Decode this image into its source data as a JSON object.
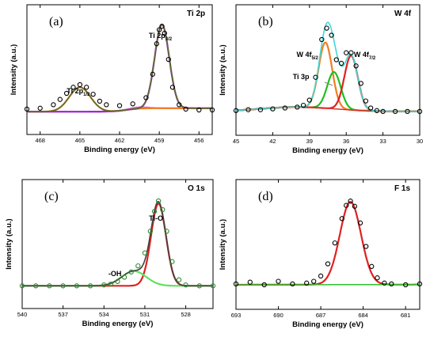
{
  "chart_data": [
    {
      "type": "line",
      "panel_label": "(a)",
      "title": "Ti 2p",
      "xlabel": "Binding energy (eV)",
      "ylabel": "Intensity (a.u.)",
      "xlim": [
        469,
        455
      ],
      "x_reversed": true,
      "xticks": [
        468,
        465,
        462,
        459,
        456
      ],
      "annotations": [
        {
          "text": "Ti 2p",
          "sub": "1/2",
          "x": 465
        },
        {
          "text": "Ti 2p",
          "sub": "3/2",
          "x": 458.8
        }
      ],
      "colors": {
        "data": "#000000",
        "peak_a": "#f07d20",
        "peak_b": "#9a2ad0",
        "background": "#e060e0",
        "envelope": "#5a6e22"
      },
      "series": [
        {
          "role": "data",
          "marker": "circle",
          "color": "#000000",
          "x": [
            469,
            468,
            467,
            466.5,
            466,
            465.5,
            465,
            464.5,
            464,
            463.5,
            463,
            462,
            461,
            460,
            459.5,
            459.2,
            459,
            458.8,
            458.6,
            458.3,
            458,
            457.5,
            457,
            456,
            455
          ],
          "y": [
            0.05,
            0.06,
            0.1,
            0.16,
            0.23,
            0.3,
            0.33,
            0.3,
            0.22,
            0.14,
            0.1,
            0.09,
            0.11,
            0.18,
            0.45,
            0.8,
            0.96,
            1.0,
            0.92,
            0.62,
            0.3,
            0.1,
            0.05,
            0.04,
            0.04
          ]
        }
      ]
    },
    {
      "type": "line",
      "panel_label": "(b)",
      "title": "W 4f",
      "xlabel": "Binding energy (eV)",
      "ylabel": "Intensity (a.u.)",
      "xlim": [
        45,
        30
      ],
      "x_reversed": true,
      "xticks": [
        45,
        42,
        39,
        36,
        33,
        30
      ],
      "annotations": [
        {
          "text": "W 4f",
          "sub": "5/2",
          "x": 37.6
        },
        {
          "text": "W 4f",
          "sub": "7/2",
          "x": 35.5
        },
        {
          "text": "Ti 3p",
          "sub": "",
          "x": 37.0
        }
      ],
      "colors": {
        "data": "#000000",
        "peak_a": "#f07d20",
        "peak_b": "#20c020",
        "peak_c": "#e02020",
        "envelope": "#40d8d8",
        "background": "#e03030"
      },
      "series": [
        {
          "role": "data",
          "marker": "circle",
          "color": "#000000",
          "x": [
            45,
            44,
            43,
            42,
            41,
            40,
            39.5,
            39,
            38.5,
            38,
            37.6,
            37.2,
            36.8,
            36.4,
            36,
            35.6,
            35.2,
            34.8,
            34.4,
            34,
            33.5,
            33,
            32,
            31,
            30
          ],
          "y": [
            0.04,
            0.05,
            0.05,
            0.06,
            0.07,
            0.08,
            0.1,
            0.16,
            0.42,
            0.85,
            0.98,
            0.9,
            0.62,
            0.58,
            0.7,
            0.7,
            0.55,
            0.35,
            0.15,
            0.07,
            0.04,
            0.03,
            0.03,
            0.03,
            0.03
          ]
        }
      ]
    },
    {
      "type": "line",
      "panel_label": "(c)",
      "title": "O 1s",
      "xlabel": "Binding energy (eV)",
      "ylabel": "Intensity (a.u.)",
      "xlim": [
        540,
        526
      ],
      "x_reversed": true,
      "xticks": [
        540,
        537,
        534,
        531,
        528
      ],
      "annotations": [
        {
          "text": "Ti-O",
          "sub": "",
          "x": 530.0
        },
        {
          "text": "-OH",
          "sub": "",
          "x": 532.4
        }
      ],
      "colors": {
        "data": "#2a8a2a",
        "peak_a": "#e02020",
        "peak_b": "#60e060",
        "envelope": "#404040"
      },
      "series": [
        {
          "role": "data",
          "marker": "circle",
          "color": "#2a8a2a",
          "x": [
            540,
            539,
            538,
            537,
            536,
            535,
            534,
            533.5,
            533,
            532.5,
            532,
            531.5,
            531,
            530.6,
            530.3,
            530,
            529.7,
            529.4,
            529,
            528.5,
            528,
            527,
            526
          ],
          "y": [
            0.02,
            0.02,
            0.02,
            0.02,
            0.02,
            0.02,
            0.03,
            0.04,
            0.07,
            0.12,
            0.18,
            0.25,
            0.4,
            0.65,
            0.88,
            1.0,
            0.9,
            0.65,
            0.3,
            0.09,
            0.03,
            0.02,
            0.02
          ]
        }
      ]
    },
    {
      "type": "line",
      "panel_label": "(d)",
      "title": "F 1s",
      "xlabel": "Binding energy (eV)",
      "ylabel": "Intensity (a.u.)",
      "xlim": [
        693,
        680
      ],
      "x_reversed": true,
      "xticks": [
        693,
        690,
        687,
        684,
        681
      ],
      "annotations": [],
      "colors": {
        "data": "#000000",
        "peak_a": "#e02020",
        "background": "#30c030"
      },
      "series": [
        {
          "role": "data",
          "marker": "circle",
          "color": "#000000",
          "x": [
            693,
            692,
            691,
            690,
            689,
            688,
            687.5,
            687,
            686.5,
            686,
            685.5,
            685.2,
            684.9,
            684.6,
            684.2,
            683.8,
            683.4,
            683,
            682.5,
            682,
            681,
            680
          ],
          "y": [
            0.05,
            0.07,
            0.04,
            0.08,
            0.05,
            0.06,
            0.08,
            0.14,
            0.28,
            0.52,
            0.8,
            0.95,
            1.0,
            0.94,
            0.75,
            0.48,
            0.25,
            0.12,
            0.06,
            0.05,
            0.04,
            0.05
          ]
        }
      ]
    }
  ]
}
